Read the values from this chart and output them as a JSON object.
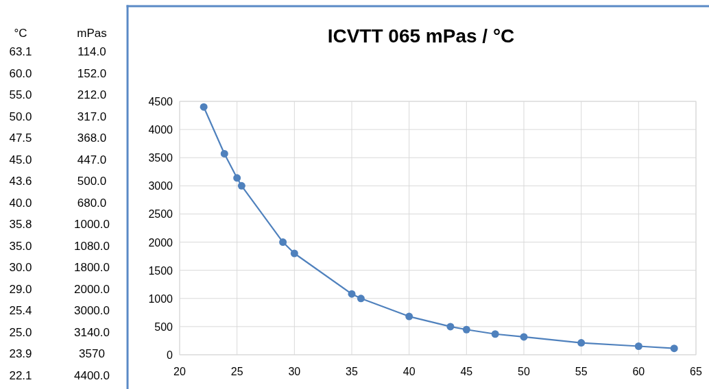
{
  "chart_data": [
    {
      "type": "other",
      "annotations": [
        "°C",
        "mPas",
        "63.1",
        "114.0",
        "60.0",
        "152.0",
        "55.0",
        "212.0",
        "50.0",
        "317.0",
        "47.5",
        "368.0",
        "45.0",
        "447.0",
        "43.6",
        "500.0",
        "40.0",
        "680.0",
        "35.8",
        "1000.0",
        "35.0",
        "1080.0",
        "30.0",
        "1800.0",
        "29.0",
        "2000.0",
        "25.4",
        "3000.0",
        "25.0",
        "3140.0",
        "23.9",
        "3570",
        "22.1",
        "4400.0"
      ]
    },
    {
      "type": "line",
      "title": "ICVTT 065 mPas / °C",
      "x": [
        63.1,
        60.0,
        55.0,
        50.0,
        47.5,
        45.0,
        43.6,
        40.0,
        35.8,
        35.0,
        30.0,
        29.0,
        25.4,
        25.0,
        23.9,
        22.1
      ],
      "series": [
        {
          "color": "#4f81bd",
          "values": [
            114,
            152,
            212,
            317,
            368,
            447,
            500,
            680,
            1000,
            1080,
            1800,
            2000,
            3000,
            3140,
            3570,
            4400
          ]
        }
      ],
      "xlim": [
        20,
        65
      ],
      "xticks": [
        20,
        25,
        30,
        35,
        40,
        45,
        50,
        55,
        60,
        65
      ],
      "ylim": [
        0,
        4500
      ],
      "yticks": [
        0,
        500,
        1000,
        1500,
        2000,
        2500,
        3000,
        3500,
        4000,
        4500
      ],
      "grid": true,
      "marker": "circle",
      "line_style": "solid"
    }
  ]
}
